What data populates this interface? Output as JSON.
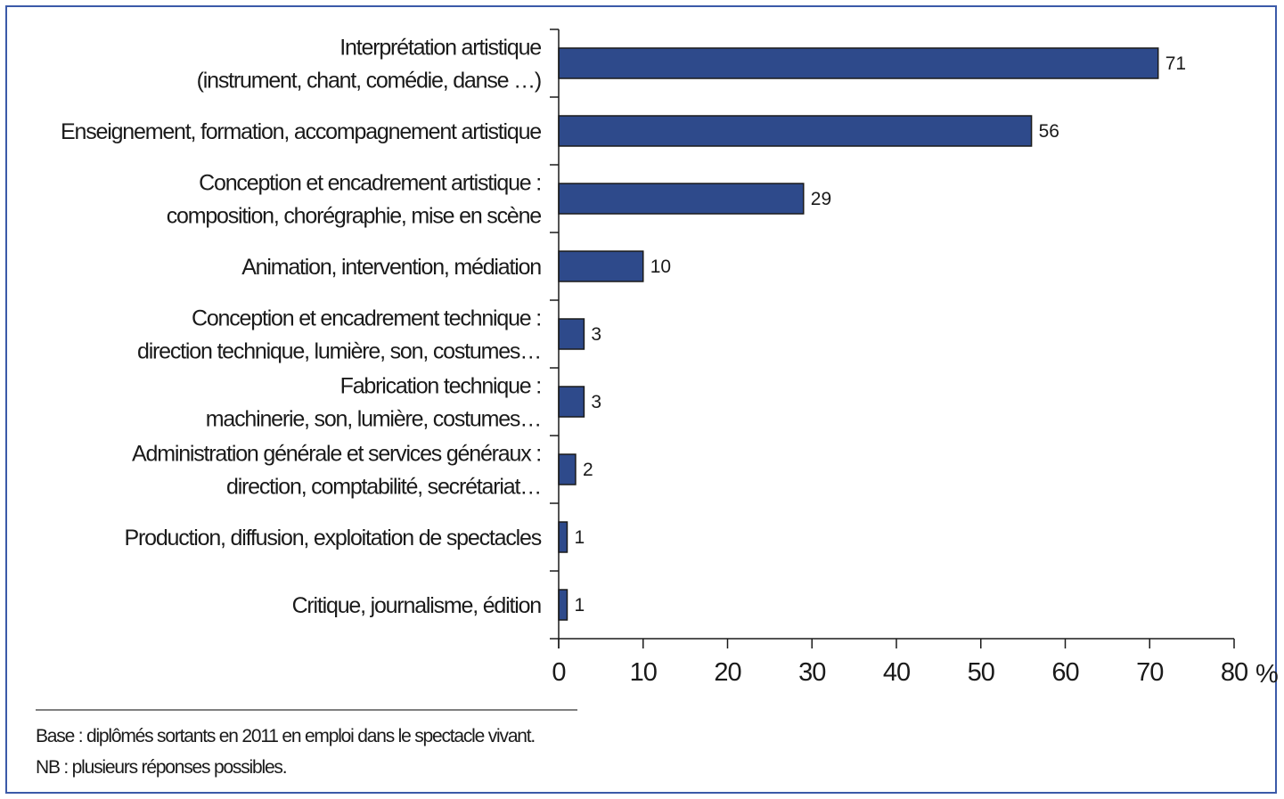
{
  "chart_data": {
    "type": "bar",
    "orientation": "horizontal",
    "categories": [
      [
        "Interprétation artistique",
        "(instrument, chant, comédie, danse …)"
      ],
      [
        "Enseignement, formation, accompagnement artistique"
      ],
      [
        "Conception et encadrement artistique :",
        "composition, chorégraphie, mise en scène"
      ],
      [
        "Animation, intervention, médiation"
      ],
      [
        "Conception et encadrement technique :",
        "direction technique, lumière, son, costumes…"
      ],
      [
        "Fabrication technique :",
        "machinerie, son, lumière, costumes…"
      ],
      [
        "Administration générale et services généraux :",
        "direction, comptabilité, secrétariat…"
      ],
      [
        "Production, diffusion, exploitation de spectacles"
      ],
      [
        "Critique, journalisme, édition"
      ]
    ],
    "values": [
      71,
      56,
      29,
      10,
      3,
      3,
      2,
      1,
      1
    ],
    "xlim": [
      0,
      80
    ],
    "xticks": [
      "0",
      "10",
      "20",
      "30",
      "40",
      "50",
      "60",
      "70",
      "80"
    ],
    "xunit": "%",
    "grid": false,
    "legend": "none",
    "bar_color": "#2e4a8b",
    "notes": [
      "Base : diplômés sortants en 2011 en emploi dans le spectacle vivant.",
      "NB : plusieurs réponses possibles."
    ]
  }
}
